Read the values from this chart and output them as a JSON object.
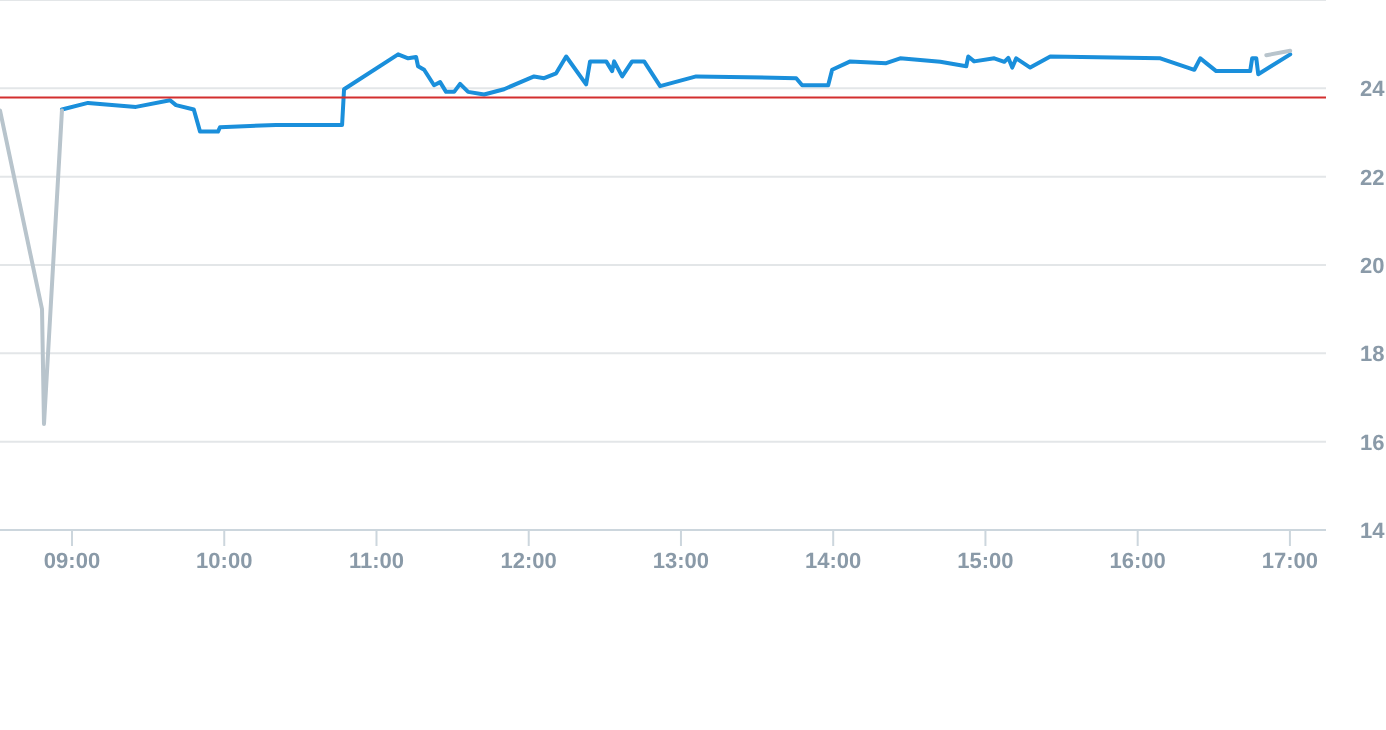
{
  "chart_data": {
    "type": "line",
    "xlim": [
      8.527,
      17.237
    ],
    "ylim": [
      14,
      26
    ],
    "xticks": [
      {
        "value": 9,
        "label": "09:00"
      },
      {
        "value": 10,
        "label": "10:00"
      },
      {
        "value": 11,
        "label": "11:00"
      },
      {
        "value": 12,
        "label": "12:00"
      },
      {
        "value": 13,
        "label": "13:00"
      },
      {
        "value": 14,
        "label": "14:00"
      },
      {
        "value": 15,
        "label": "15:00"
      },
      {
        "value": 16,
        "label": "16:00"
      },
      {
        "value": 17,
        "label": "17:00"
      }
    ],
    "yticks": [
      14,
      16,
      18,
      20,
      22,
      24,
      {
        "value": 26,
        "label": null
      }
    ],
    "grid": "y",
    "series": [
      {
        "color": "#1a8fdb",
        "x": [
          8.934,
          9.105,
          9.42,
          9.644,
          9.683,
          9.8,
          9.841,
          9.959,
          9.972,
          10.34,
          10.774,
          10.787,
          11.142,
          11.208,
          11.26,
          11.273,
          11.313,
          11.378,
          11.418,
          11.457,
          11.51,
          11.549,
          11.602,
          11.707,
          11.838,
          12.035,
          12.101,
          12.18,
          12.246,
          12.377,
          12.403,
          12.509,
          12.548,
          12.561,
          12.614,
          12.679,
          12.758,
          12.863,
          13.1,
          13.757,
          13.796,
          13.967,
          13.993,
          14.112,
          14.348,
          14.44,
          14.703,
          14.874,
          14.887,
          14.926,
          15.058,
          15.124,
          15.15,
          15.176,
          15.202,
          15.294,
          15.426,
          16.149,
          16.372,
          16.411,
          16.45,
          16.516,
          16.739,
          16.752,
          16.779,
          16.792,
          17.002
        ],
        "values": [
          23.52,
          23.67,
          23.58,
          23.73,
          23.62,
          23.52,
          23.02,
          23.02,
          23.12,
          23.17,
          23.17,
          23.98,
          24.77,
          24.68,
          24.71,
          24.5,
          24.42,
          24.07,
          24.14,
          23.92,
          23.92,
          24.1,
          23.92,
          23.86,
          23.98,
          24.27,
          24.23,
          24.34,
          24.72,
          24.09,
          24.61,
          24.61,
          24.39,
          24.61,
          24.27,
          24.61,
          24.61,
          24.05,
          24.27,
          24.23,
          24.07,
          24.07,
          24.42,
          24.61,
          24.57,
          24.68,
          24.6,
          24.5,
          24.72,
          24.61,
          24.68,
          24.6,
          24.69,
          24.47,
          24.68,
          24.47,
          24.72,
          24.68,
          24.42,
          24.68,
          24.57,
          24.39,
          24.39,
          24.68,
          24.68,
          24.32,
          24.77
        ]
      },
      {
        "color": "#b8c4cc",
        "x": [
          8.527,
          8.803,
          8.816,
          8.934,
          12.0,
          16.845,
          17.002
        ],
        "values": [
          23.5,
          19.0,
          16.4,
          23.5,
          null,
          24.75,
          24.85
        ]
      }
    ],
    "ref_lines": [
      {
        "axis": "y",
        "value": 23.79,
        "color": "#d32f2f"
      }
    ]
  }
}
